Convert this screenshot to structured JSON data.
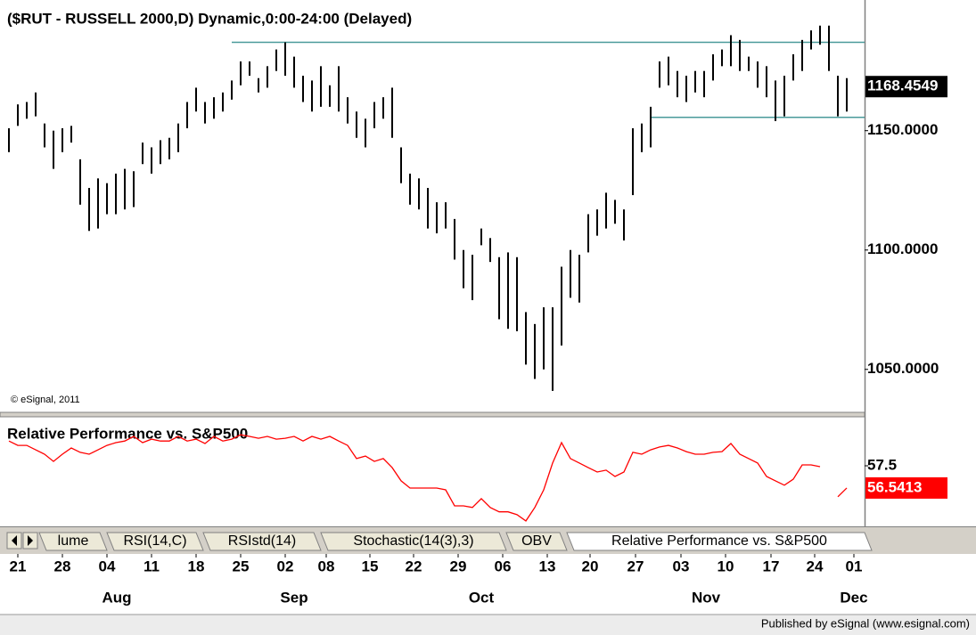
{
  "chart_data": {
    "type": "range-bar",
    "title": "($RUT - RUSSELL 2000,D) Dynamic,0:00-24:00 (Delayed)",
    "copyright": "© eSignal, 2011",
    "color": "#000000",
    "high": [
      1151,
      1161,
      1162,
      1166,
      1153,
      1150,
      1151,
      1152,
      1138,
      1126,
      1130,
      1128,
      1132,
      1134,
      1133,
      1145,
      1143,
      1146,
      1147,
      1153,
      1162,
      1168,
      1162,
      1164,
      1166,
      1171,
      1179,
      1179,
      1172,
      1177,
      1184,
      1187,
      1181,
      1173,
      1171,
      1177,
      1169,
      1177,
      1164,
      1158,
      1155,
      1162,
      1164,
      1168,
      1143,
      1132,
      1130,
      1126,
      1120,
      1120,
      1113,
      1100,
      1098,
      1109,
      1105,
      1097,
      1099,
      1097,
      1074,
      1069,
      1076,
      1076,
      1093,
      1100,
      1098,
      1115,
      1117,
      1124,
      1121,
      1117,
      1151,
      1153,
      1160,
      1179,
      1181,
      1175,
      1173,
      1175,
      1175,
      1182,
      1184,
      1190,
      1188,
      1181,
      1179,
      1177,
      1171,
      1173,
      1182,
      1188,
      1192,
      1194,
      1194,
      1173,
      1172
    ],
    "low": [
      1141,
      1152,
      1155,
      1156,
      1143,
      1134,
      1141,
      1145,
      1119,
      1108,
      1109,
      1115,
      1115,
      1117,
      1118,
      1136,
      1132,
      1136,
      1138,
      1141,
      1151,
      1158,
      1153,
      1155,
      1158,
      1163,
      1169,
      1173,
      1166,
      1168,
      1175,
      1173,
      1168,
      1162,
      1158,
      1160,
      1160,
      1158,
      1153,
      1147,
      1143,
      1151,
      1155,
      1147,
      1128,
      1119,
      1117,
      1109,
      1107,
      1109,
      1096,
      1084,
      1079,
      1102,
      1095,
      1071,
      1067,
      1066,
      1052,
      1046,
      1050,
      1041,
      1060,
      1080,
      1078,
      1099,
      1106,
      1109,
      1111,
      1104,
      1123,
      1141,
      1143,
      1168,
      1169,
      1164,
      1162,
      1166,
      1164,
      1171,
      1177,
      1177,
      1175,
      1175,
      1168,
      1164,
      1154,
      1156,
      1171,
      1175,
      1184,
      1186,
      1175,
      1156,
      1158
    ],
    "last_value": 1168.4549,
    "levels": [
      {
        "value": 1187,
        "start": 25,
        "color": "#4a9a9a"
      },
      {
        "value": 1155.6,
        "start": 72,
        "color": "#4a9a9a"
      }
    ],
    "ylim": [
      1032,
      1201
    ],
    "yticks": [
      {
        "value": 1150,
        "label": "1150.0000"
      },
      {
        "value": 1100,
        "label": "1100.0000"
      },
      {
        "value": 1050,
        "label": "1050.0000"
      }
    ],
    "xlim": [
      -0.2,
      96
    ],
    "xticks": [
      {
        "value": 1,
        "label": "21"
      },
      {
        "value": 6,
        "label": "28"
      },
      {
        "value": 11,
        "label": "04"
      },
      {
        "value": 16,
        "label": "11"
      },
      {
        "value": 21,
        "label": "18"
      },
      {
        "value": 26,
        "label": "25"
      },
      {
        "value": 31,
        "label": "02"
      },
      {
        "value": 35.6,
        "label": "08"
      },
      {
        "value": 40.5,
        "label": "15"
      },
      {
        "value": 45.4,
        "label": "22"
      },
      {
        "value": 50.4,
        "label": "29"
      },
      {
        "value": 55.4,
        "label": "06"
      },
      {
        "value": 60.4,
        "label": "13"
      },
      {
        "value": 65.2,
        "label": "20"
      },
      {
        "value": 70.3,
        "label": "27"
      },
      {
        "value": 75.4,
        "label": "03"
      },
      {
        "value": 80.4,
        "label": "10"
      },
      {
        "value": 85.5,
        "label": "17"
      },
      {
        "value": 90.4,
        "label": "24"
      },
      {
        "value": 94.8,
        "label": "01"
      }
    ],
    "month_ticks": [
      {
        "value": 12.1,
        "label": "Aug"
      },
      {
        "value": 32,
        "label": "Sep"
      },
      {
        "value": 53,
        "label": "Oct"
      },
      {
        "value": 78.2,
        "label": "Nov"
      },
      {
        "value": 94.8,
        "label": "Dec"
      }
    ],
    "study": {
      "type": "line",
      "title": "Relative Performance vs. S&P500",
      "color": "#ff0000",
      "values": [
        58.57,
        58.38,
        58.38,
        58.19,
        58.0,
        57.69,
        58.0,
        58.27,
        58.08,
        58.0,
        58.19,
        58.38,
        58.5,
        58.57,
        58.77,
        58.5,
        58.65,
        58.57,
        58.57,
        58.77,
        58.57,
        58.65,
        58.46,
        58.77,
        58.57,
        58.65,
        58.84,
        58.77,
        58.69,
        58.77,
        58.65,
        58.69,
        58.77,
        58.57,
        58.77,
        58.65,
        58.77,
        58.57,
        58.38,
        57.81,
        57.92,
        57.69,
        57.81,
        57.42,
        56.85,
        56.54,
        56.54,
        56.54,
        56.54,
        56.46,
        55.77,
        55.77,
        55.7,
        56.08,
        55.7,
        55.51,
        55.51,
        55.39,
        55.12,
        55.7,
        56.46,
        57.62,
        58.5,
        57.81,
        57.62,
        57.42,
        57.23,
        57.31,
        57.04,
        57.23,
        58.08,
        58.0,
        58.19,
        58.31,
        58.38,
        58.27,
        58.11,
        58.0,
        58.0,
        58.08,
        58.11,
        58.46,
        58.0,
        57.81,
        57.62,
        57.04,
        56.85,
        56.66,
        56.92,
        57.54,
        57.54,
        57.46,
        null,
        56.16,
        56.5413
      ],
      "ylim": [
        55.0,
        59.5
      ],
      "yticks": [
        57.5
      ]
    },
    "tabs": [
      "lume",
      "RSI(14,C)",
      "RSIstd(14)",
      "Stochastic(14(3),3)",
      "OBV",
      "Relative Performance vs. S&P500"
    ],
    "active_tab": 5,
    "footer": "Published by eSignal (www.esignal.com)"
  }
}
